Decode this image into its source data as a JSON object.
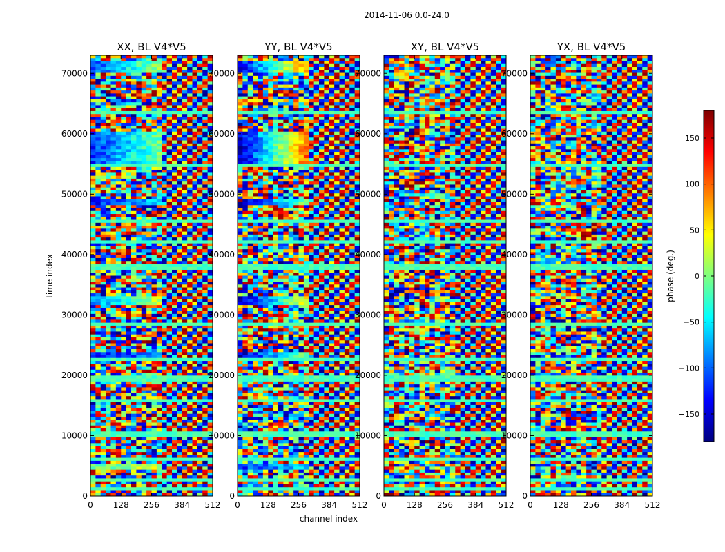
{
  "chart_data": {
    "type": "heatmap",
    "suptitle": "2014-11-06 0.0-24.0",
    "xlabel": "channel index",
    "ylabel": "time index",
    "xlim": [
      0,
      512
    ],
    "ylim": [
      0,
      73000
    ],
    "x_ticks": [
      0,
      128,
      256,
      384,
      512
    ],
    "y_ticks": [
      0,
      10000,
      20000,
      30000,
      40000,
      50000,
      60000,
      70000
    ],
    "panels": [
      {
        "title": "XX, BL V4*V5",
        "polarization": "XX"
      },
      {
        "title": "YY, BL V4*V5",
        "polarization": "YY"
      },
      {
        "title": "XY, BL V4*V5",
        "polarization": "XY"
      },
      {
        "title": "YX, BL V4*V5",
        "polarization": "YX"
      }
    ],
    "colorbar": {
      "label": "phase (deg.)",
      "vmin": -180,
      "vmax": 180,
      "ticks": [
        -150,
        -100,
        -50,
        0,
        50,
        100,
        150
      ],
      "tick_labels": [
        "−150",
        "−100",
        "−50",
        "0",
        "50",
        "100",
        "150"
      ],
      "colormap": "jet",
      "colors": [
        "#00007f",
        "#0000ff",
        "#007fff",
        "#00ffff",
        "#7fff7f",
        "#ffff00",
        "#ff7f00",
        "#ff0000",
        "#7f0000"
      ]
    }
  }
}
